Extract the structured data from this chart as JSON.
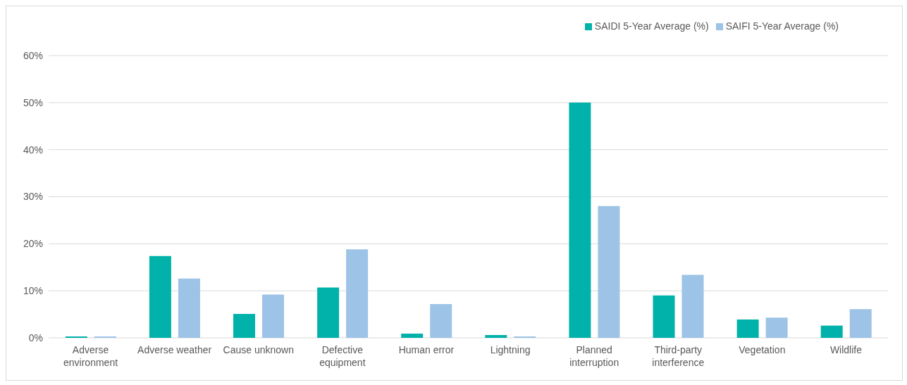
{
  "chart_data": {
    "type": "bar",
    "categories": [
      "Adverse environment",
      "Adverse weather",
      "Cause unknown",
      "Defective equipment",
      "Human error",
      "Lightning",
      "Planned interruption",
      "Third-party interference",
      "Vegetation",
      "Wildlife"
    ],
    "series": [
      {
        "name": "SAIDI 5-Year Average (%)",
        "color": "#00b2a9",
        "values": [
          0.3,
          17.4,
          5.1,
          10.7,
          0.9,
          0.6,
          50,
          9.0,
          3.9,
          2.6
        ]
      },
      {
        "name": "SAIFI 5-Year Average (%)",
        "color": "#9dc3e6",
        "values": [
          0.3,
          12.6,
          9.2,
          18.8,
          7.2,
          0.3,
          28.0,
          13.4,
          4.3,
          6.1
        ]
      }
    ],
    "ylim": [
      0,
      60
    ],
    "yticks": [
      {
        "value": 0,
        "label": "0%"
      },
      {
        "value": 10,
        "label": "10%"
      },
      {
        "value": 20,
        "label": "20%"
      },
      {
        "value": 30,
        "label": "30%"
      },
      {
        "value": 40,
        "label": "40%"
      },
      {
        "value": 50,
        "label": "50%"
      },
      {
        "value": 60,
        "label": "60%"
      }
    ],
    "grid": "y",
    "legend": "top right"
  }
}
